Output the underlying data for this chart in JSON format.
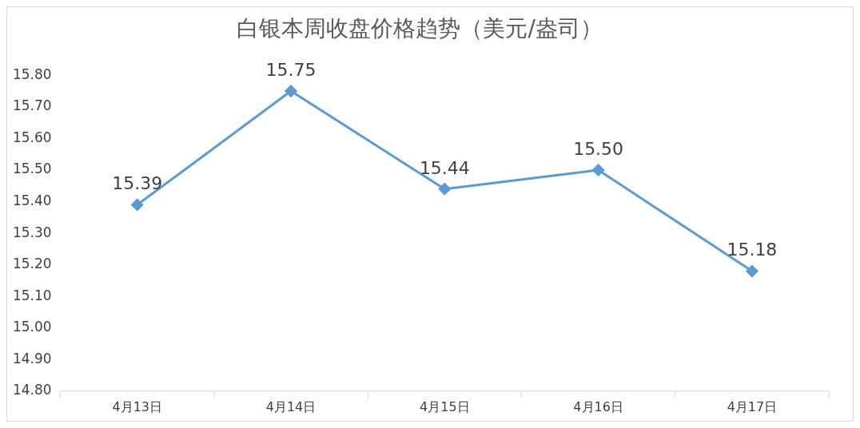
{
  "chart_data": {
    "type": "line",
    "title": "白银本周收盘价格趋势（美元/盎司）",
    "categories": [
      "4月13日",
      "4月14日",
      "4月15日",
      "4月16日",
      "4月17日"
    ],
    "series": [
      {
        "color": "#5b9bd5",
        "values": [
          15.39,
          15.75,
          15.44,
          15.5,
          15.18
        ],
        "value_labels": [
          "15.39",
          "15.75",
          "15.44",
          "15.50",
          "15.18"
        ]
      }
    ],
    "ylim": [
      14.8,
      15.8
    ],
    "yticks": [
      {
        "value": 14.8,
        "label": "14.80"
      },
      {
        "value": 14.9,
        "label": "14.90"
      },
      {
        "value": 15.0,
        "label": "15.00"
      },
      {
        "value": 15.1,
        "label": "15.10"
      },
      {
        "value": 15.2,
        "label": "15.20"
      },
      {
        "value": 15.3,
        "label": "15.30"
      },
      {
        "value": 15.4,
        "label": "15.40"
      },
      {
        "value": 15.5,
        "label": "15.50"
      },
      {
        "value": 15.6,
        "label": "15.60"
      },
      {
        "value": 15.7,
        "label": "15.70"
      },
      {
        "value": 15.8,
        "label": "15.80"
      }
    ],
    "grid": false,
    "legend": false,
    "marker": "diamond",
    "line_style": "solid"
  }
}
